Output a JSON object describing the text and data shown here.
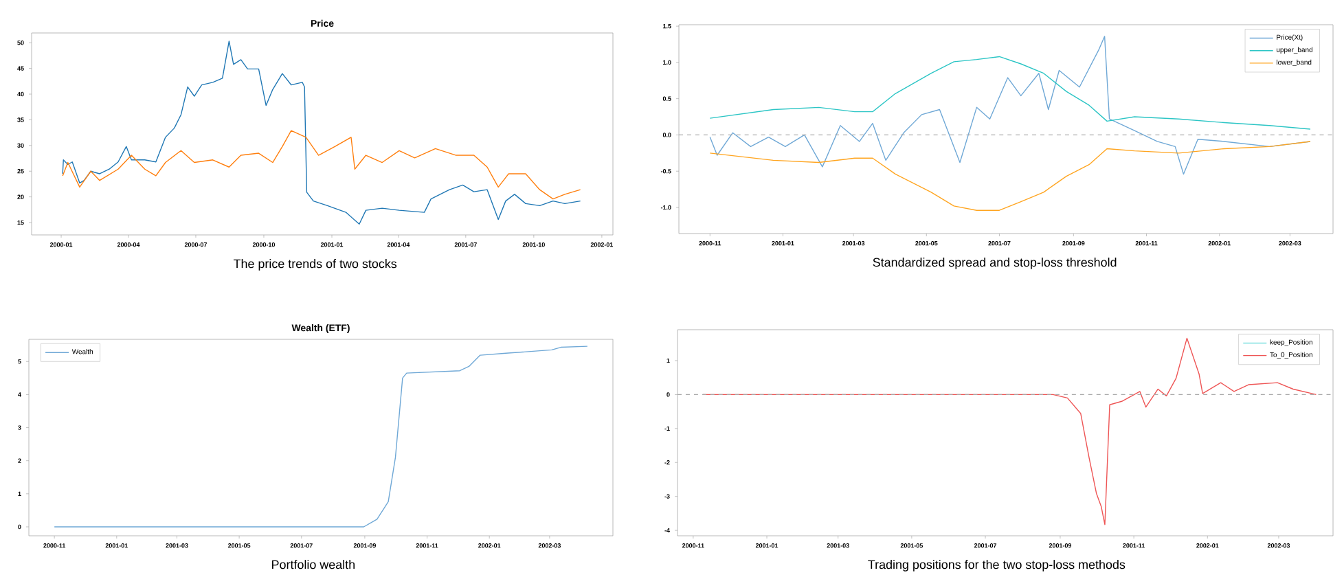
{
  "chart_data": [
    {
      "type": "line",
      "title": "Price",
      "annotations": [
        "The price trends of two stocks"
      ],
      "xlim": [
        "1999-11-22",
        "2002-01-16"
      ],
      "ylim": [
        12.6,
        51.9
      ],
      "xticks": [
        "2000-01",
        "2000-04",
        "2000-07",
        "2000-10",
        "2001-01",
        "2001-04",
        "2001-07",
        "2001-10",
        "2002-01"
      ],
      "yticks": [
        15,
        20,
        25,
        30,
        35,
        40,
        45,
        50
      ],
      "line_style": "solid",
      "series": [
        {
          "color": "#1f77b4",
          "x": [
            "2000-01-03",
            "2000-01-04",
            "2000-01-10",
            "2000-01-16",
            "2000-01-26",
            "2000-02-01",
            "2000-02-10",
            "2000-02-22",
            "2000-03-06",
            "2000-03-18",
            "2000-03-29",
            "2000-04-05",
            "2000-04-23",
            "2000-05-08",
            "2000-05-21",
            "2000-06-02",
            "2000-06-11",
            "2000-06-20",
            "2000-06-29",
            "2000-07-09",
            "2000-07-24",
            "2000-08-06",
            "2000-08-15",
            "2000-08-21",
            "2000-08-31",
            "2000-09-09",
            "2000-09-24",
            "2000-10-04",
            "2000-10-13",
            "2000-10-26",
            "2000-11-07",
            "2000-11-22",
            "2000-11-25",
            "2000-11-28",
            "2000-12-07",
            "2000-12-26",
            "2001-01-20",
            "2001-02-07",
            "2001-02-16",
            "2001-03-10",
            "2001-04-02",
            "2001-05-06",
            "2001-05-15",
            "2001-06-09",
            "2001-06-27",
            "2001-07-12",
            "2001-07-30",
            "2001-08-14",
            "2001-08-24",
            "2001-09-05",
            "2001-09-20",
            "2001-10-09",
            "2001-10-27",
            "2001-11-12",
            "2001-12-03"
          ],
          "values": [
            24.5,
            27.2,
            26.3,
            26.8,
            22.7,
            23.2,
            25,
            24.5,
            25.4,
            26.8,
            29.8,
            27.2,
            27.2,
            26.8,
            31.6,
            33.4,
            36,
            41.4,
            39.6,
            41.8,
            42.3,
            43.1,
            50.3,
            45.8,
            46.7,
            44.9,
            44.9,
            37.8,
            40.9,
            44,
            41.8,
            42.3,
            41.4,
            20.9,
            19.2,
            18.3,
            17,
            14.7,
            17.4,
            17.8,
            17.4,
            17,
            19.6,
            21.4,
            22.3,
            21,
            21.4,
            15.6,
            19.2,
            20.5,
            18.7,
            18.3,
            19.2,
            18.7,
            19.2
          ]
        },
        {
          "color": "#ff7f0e",
          "x": [
            "2000-01-03",
            "2000-01-10",
            "2000-01-26",
            "2000-02-10",
            "2000-02-22",
            "2000-03-18",
            "2000-04-05",
            "2000-04-23",
            "2000-05-08",
            "2000-05-21",
            "2000-06-11",
            "2000-06-29",
            "2000-07-24",
            "2000-08-15",
            "2000-08-31",
            "2000-09-24",
            "2000-10-13",
            "2000-10-26",
            "2000-11-07",
            "2000-11-27",
            "2000-12-14",
            "2001-01-05",
            "2001-01-27",
            "2001-02-01",
            "2001-02-16",
            "2001-03-10",
            "2001-04-02",
            "2001-04-23",
            "2001-05-21",
            "2001-06-18",
            "2001-07-12",
            "2001-07-30",
            "2001-08-14",
            "2001-08-28",
            "2001-09-20",
            "2001-10-09",
            "2001-10-27",
            "2001-11-12",
            "2001-12-03"
          ],
          "values": [
            24.1,
            26.7,
            21.9,
            25,
            23.2,
            25.4,
            28.1,
            25.4,
            24.1,
            26.7,
            29,
            26.7,
            27.2,
            25.8,
            28.1,
            28.5,
            26.7,
            29.8,
            32.9,
            31.6,
            28.1,
            29.8,
            31.6,
            25.4,
            28.1,
            26.7,
            29,
            27.6,
            29.4,
            28.1,
            28.1,
            25.8,
            21.9,
            24.5,
            24.5,
            21.4,
            19.6,
            20.5,
            21.4
          ]
        }
      ]
    },
    {
      "type": "line",
      "annotations": [
        "Standardized spread and stop-loss threshold"
      ],
      "xlim": [
        "2000-10-06",
        "2002-04-06"
      ],
      "ylim": [
        -1.36,
        1.52
      ],
      "xticks": [
        "2000-11",
        "2001-01",
        "2001-03",
        "2001-05",
        "2001-07",
        "2001-09",
        "2001-11",
        "2002-01",
        "2002-03"
      ],
      "yticks": [
        {
          "value": -1,
          "label": "-1.0"
        },
        {
          "value": -0.5,
          "label": "-0.5"
        },
        {
          "value": 0,
          "label": "0.0"
        },
        {
          "value": 0.5,
          "label": "0.5"
        },
        {
          "value": 1,
          "label": "1.0"
        },
        {
          "value": 1.5,
          "label": "1.5"
        }
      ],
      "legend": "top right",
      "line_style": "solid",
      "ref_lines": [
        {
          "axis": "y",
          "value": 0,
          "color": "#aaaaaa",
          "line_style": "dashed"
        }
      ],
      "series": [
        {
          "name": "Price(Xt)",
          "color": "#6fa8d6",
          "x": [
            "2000-11-01",
            "2000-11-07",
            "2000-11-20",
            "2000-12-05",
            "2000-12-20",
            "2001-01-03",
            "2001-01-19",
            "2001-02-03",
            "2001-02-18",
            "2001-03-06",
            "2001-03-17",
            "2001-03-28",
            "2001-04-12",
            "2001-04-27",
            "2001-05-12",
            "2001-05-29",
            "2001-06-12",
            "2001-06-23",
            "2001-07-08",
            "2001-07-19",
            "2001-08-03",
            "2001-08-11",
            "2001-08-20",
            "2001-09-06",
            "2001-09-22",
            "2001-09-27",
            "2001-10-01",
            "2001-10-22",
            "2001-11-10",
            "2001-11-25",
            "2001-12-02",
            "2001-12-14",
            "2002-01-05",
            "2002-02-12",
            "2002-03-18"
          ],
          "values": [
            -0.03,
            -0.28,
            0.03,
            -0.16,
            -0.03,
            -0.16,
            0,
            -0.44,
            0.13,
            -0.09,
            0.16,
            -0.35,
            0.03,
            0.28,
            0.35,
            -0.38,
            0.38,
            0.22,
            0.79,
            0.54,
            0.85,
            0.35,
            0.89,
            0.66,
            1.17,
            1.36,
            0.22,
            0.06,
            -0.09,
            -0.16,
            -0.54,
            -0.06,
            -0.09,
            -0.16,
            -0.09
          ]
        },
        {
          "name": "upper_band",
          "color": "#2cc5c5",
          "x": [
            "2000-11-01",
            "2000-12-24",
            "2001-01-31",
            "2001-03-02",
            "2001-03-17",
            "2001-04-05",
            "2001-05-05",
            "2001-05-24",
            "2001-06-12",
            "2001-07-01",
            "2001-07-19",
            "2001-08-07",
            "2001-08-26",
            "2001-09-14",
            "2001-09-29",
            "2001-10-22",
            "2001-11-28",
            "2002-01-05",
            "2002-02-12",
            "2002-03-18"
          ],
          "values": [
            0.23,
            0.35,
            0.38,
            0.32,
            0.32,
            0.57,
            0.85,
            1.01,
            1.04,
            1.08,
            0.98,
            0.85,
            0.6,
            0.41,
            0.19,
            0.25,
            0.22,
            0.17,
            0.13,
            0.08
          ]
        },
        {
          "name": "lower_band",
          "color": "#ffa520",
          "x": [
            "2000-11-01",
            "2000-12-24",
            "2001-01-31",
            "2001-03-02",
            "2001-03-17",
            "2001-04-05",
            "2001-05-05",
            "2001-05-24",
            "2001-06-12",
            "2001-07-01",
            "2001-07-19",
            "2001-08-07",
            "2001-08-26",
            "2001-09-14",
            "2001-09-29",
            "2001-10-22",
            "2001-11-28",
            "2002-01-05",
            "2002-02-12",
            "2002-03-18"
          ],
          "values": [
            -0.25,
            -0.35,
            -0.38,
            -0.32,
            -0.32,
            -0.54,
            -0.79,
            -0.98,
            -1.04,
            -1.04,
            -0.92,
            -0.79,
            -0.57,
            -0.41,
            -0.19,
            -0.22,
            -0.25,
            -0.19,
            -0.16,
            -0.09
          ]
        }
      ]
    },
    {
      "type": "line",
      "title": "Wealth (ETF)",
      "annotations": [
        "Portfolio wealth"
      ],
      "xlim": [
        "2000-10-07",
        "2002-05-02"
      ],
      "ylim": [
        -0.27,
        5.67
      ],
      "xticks": [
        "2000-11",
        "2001-01",
        "2001-03",
        "2001-05",
        "2001-07",
        "2001-09",
        "2001-11",
        "2002-01",
        "2002-03"
      ],
      "yticks": [
        0,
        1,
        2,
        3,
        4,
        5
      ],
      "legend": "top left",
      "line_style": "solid",
      "series": [
        {
          "name": "Wealth",
          "color": "#6fa8d6",
          "x": [
            "2000-11-01",
            "2001-08-31",
            "2001-09-13",
            "2001-09-24",
            "2001-10-01",
            "2001-10-08",
            "2001-10-12",
            "2001-12-03",
            "2001-12-12",
            "2001-12-23",
            "2002-01-17",
            "2002-03-03",
            "2002-03-12",
            "2002-04-07"
          ],
          "values": [
            0,
            0,
            0.23,
            0.76,
            2.1,
            4.5,
            4.65,
            4.72,
            4.85,
            5.19,
            5.25,
            5.35,
            5.43,
            5.46
          ]
        }
      ]
    },
    {
      "type": "line",
      "annotations": [
        "Trading positions for the two stop-loss methods"
      ],
      "xlim": [
        "2000-10-19",
        "2002-04-15"
      ],
      "ylim": [
        -4.16,
        1.91
      ],
      "xticks": [
        "2000-11",
        "2001-01",
        "2001-03",
        "2001-05",
        "2001-07",
        "2001-09",
        "2001-11",
        "2002-01",
        "2002-03"
      ],
      "yticks": [
        -4,
        -3,
        -2,
        -1,
        0,
        1
      ],
      "legend": "top right",
      "line_style": "solid",
      "ref_lines": [
        {
          "axis": "y",
          "value": 0,
          "color": "#aaaaaa",
          "line_style": "dashed"
        }
      ],
      "series": [
        {
          "name": "keep_Position",
          "color": "#7fe0e0"
        },
        {
          "name": "To_0_Position",
          "color": "#ee5555",
          "x": [
            "2000-11-09",
            "2001-08-26",
            "2001-09-07",
            "2001-09-18",
            "2001-09-25",
            "2001-10-01",
            "2001-10-05",
            "2001-10-08",
            "2001-10-12",
            "2001-10-22",
            "2001-11-06",
            "2001-11-11",
            "2001-11-21",
            "2001-11-28",
            "2001-12-06",
            "2001-12-15",
            "2001-12-25",
            "2001-12-28",
            "2002-01-12",
            "2002-01-23",
            "2002-02-04",
            "2002-02-28",
            "2002-03-13",
            "2002-04-01"
          ],
          "values": [
            0,
            0,
            -0.1,
            -0.56,
            -1.87,
            -2.91,
            -3.3,
            -3.83,
            -0.3,
            -0.2,
            0.09,
            -0.37,
            0.16,
            -0.04,
            0.48,
            1.66,
            0.61,
            0.03,
            0.35,
            0.09,
            0.29,
            0.35,
            0.16,
            0
          ]
        }
      ]
    }
  ]
}
